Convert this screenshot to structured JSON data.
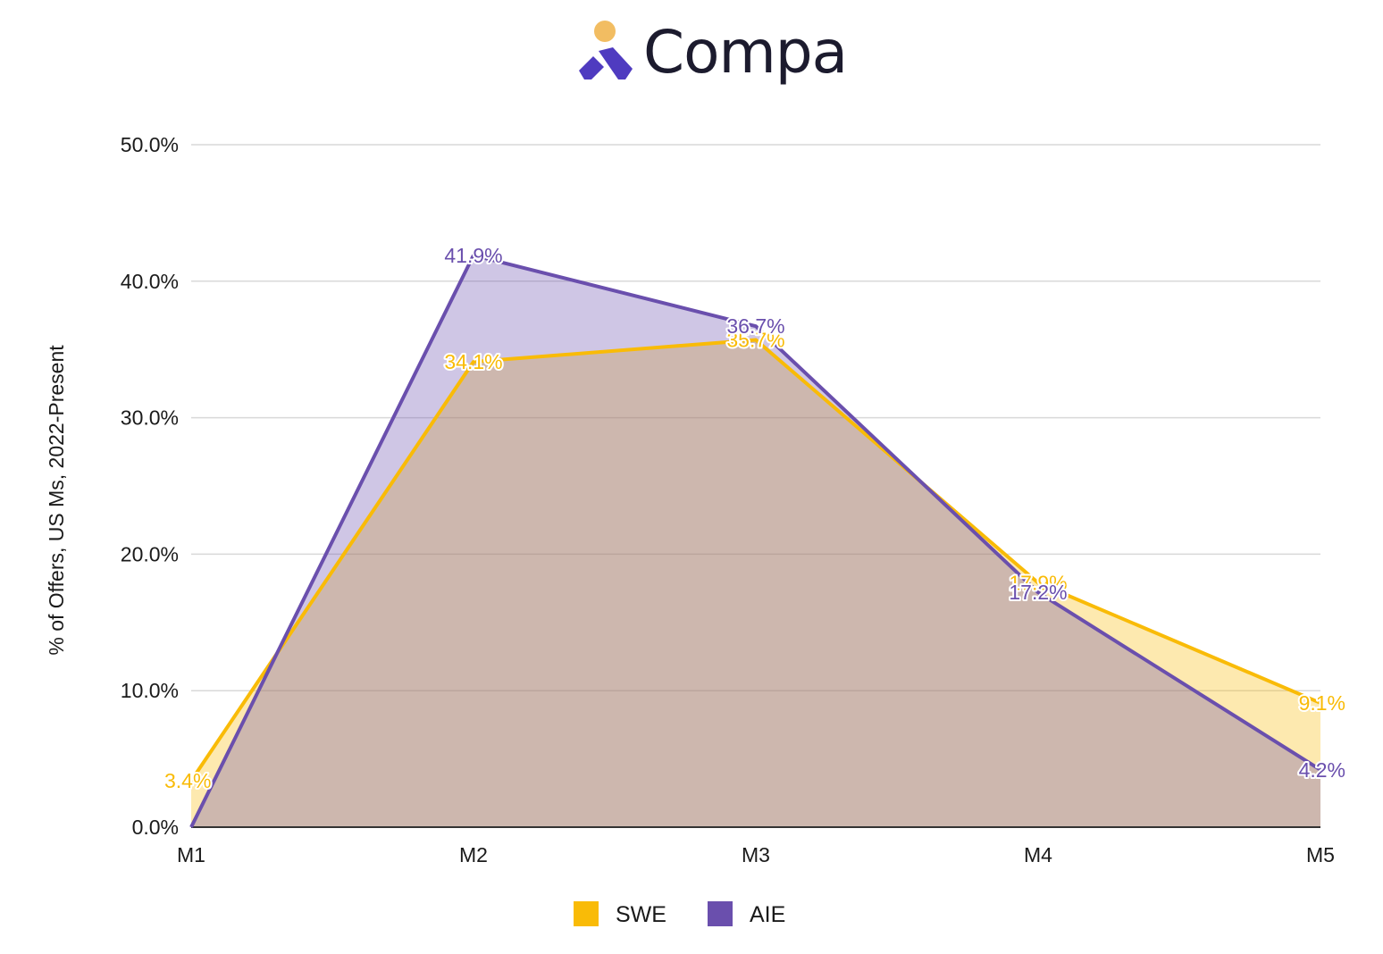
{
  "brand": {
    "name": "Compa",
    "logo_icon": "compa-logo-icon",
    "colors": {
      "dot": "#f2bd62",
      "mark": "#4f3bc0"
    }
  },
  "chart_data": {
    "type": "area",
    "categories": [
      "M1",
      "M2",
      "M3",
      "M4",
      "M5"
    ],
    "ylabel": "% of Offers, US Ms, 2022-Present",
    "ylim": [
      0,
      50
    ],
    "yticks": [
      0,
      10,
      20,
      30,
      40,
      50
    ],
    "ytick_labels": [
      "0.0%",
      "10.0%",
      "20.0%",
      "30.0%",
      "40.0%",
      "50.0%"
    ],
    "grid": true,
    "legend_position": "bottom",
    "series": [
      {
        "name": "SWE",
        "color": "#f9bb07",
        "values": [
          3.4,
          34.1,
          35.7,
          17.9,
          9.1
        ],
        "labels": [
          "3.4%",
          "34.1%",
          "35.7%",
          "17.9%",
          "9.1%"
        ]
      },
      {
        "name": "AIE",
        "color": "#6a4fad",
        "values": [
          0.0,
          41.9,
          36.7,
          17.2,
          4.2
        ],
        "labels": [
          "",
          "41.9%",
          "36.7%",
          "17.2%",
          "4.2%"
        ]
      }
    ]
  }
}
